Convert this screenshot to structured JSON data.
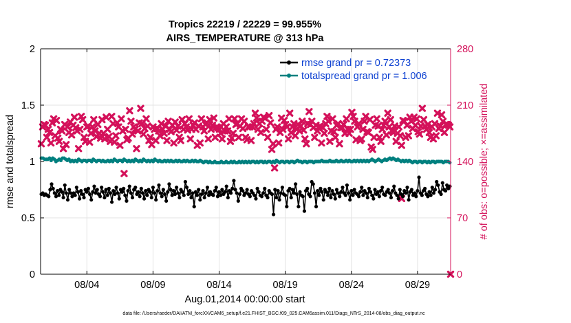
{
  "chart_data": {
    "type": "line",
    "title_line1": "Tropics 22219 / 22229 = 99.955%",
    "title_line2": "AIRS_TEMPERATURE @ 313 hPa",
    "xlabel": "Aug.01,2014 00:00:00 start",
    "ylabel_left": "rmse and totalspread",
    "ylabel_right": "# of obs: o=possible; ×=assimilated",
    "footer": "data file: /Users/raeder/DAI/ATM_forcXX/CAM6_setup/f.e21.FHIST_BGC.f09_025.CAM6assim.011/Diags_NTrS_2014-08/obs_diag_output.nc",
    "xlim": [
      0.5,
      31.5
    ],
    "ylim_left": [
      0,
      2
    ],
    "ylim_right": [
      0,
      280
    ],
    "xticks": [
      4,
      9,
      14,
      19,
      24,
      29
    ],
    "xtick_labels": [
      "08/04",
      "08/09",
      "08/14",
      "08/19",
      "08/24",
      "08/29"
    ],
    "yticks_left": [
      0,
      0.5,
      1,
      1.5,
      2
    ],
    "ytick_labels_left": [
      "0",
      "0.5",
      "1",
      "1.5",
      "2"
    ],
    "yticks_right": [
      0,
      70,
      140,
      210,
      280
    ],
    "ytick_labels_right": [
      "0",
      "70",
      "140",
      "210",
      "280"
    ],
    "grid": true,
    "legend_position": "top-right",
    "colors": {
      "rmse": "#000000",
      "spread": "#00807f",
      "obs": "#d4115a",
      "legend_text": "#0b3fd1",
      "grid": "#e3e3e3"
    },
    "series": [
      {
        "name": "rmse grand pr = 0.72373",
        "key": "rmse",
        "values": [
          0.71,
          0.72,
          0.7,
          0.71,
          0.7,
          0.69,
          0.75,
          0.8,
          0.76,
          0.72,
          0.69,
          0.74,
          0.7,
          0.75,
          0.73,
          0.68,
          0.79,
          0.72,
          0.66,
          0.75,
          0.72,
          0.69,
          0.72,
          0.7,
          0.77,
          0.73,
          0.67,
          0.74,
          0.71,
          0.68,
          0.75,
          0.73,
          0.76,
          0.71,
          0.66,
          0.73,
          0.78,
          0.72,
          0.75,
          0.71,
          0.69,
          0.77,
          0.73,
          0.68,
          0.75,
          0.7,
          0.76,
          0.72,
          0.64,
          0.74,
          0.71,
          0.77,
          0.72,
          0.67,
          0.75,
          0.73,
          0.76,
          0.7,
          0.65,
          0.74,
          0.78,
          0.72,
          0.68,
          0.75,
          0.77,
          0.71,
          0.73,
          0.69,
          0.76,
          0.72,
          0.67,
          0.74,
          0.7,
          0.75,
          0.73,
          0.68,
          0.77,
          0.72,
          0.66,
          0.74,
          0.79,
          0.72,
          0.69,
          0.75,
          0.71,
          0.65,
          0.73,
          0.8,
          0.75,
          0.7,
          0.74,
          0.71,
          0.77,
          0.72,
          0.68,
          0.75,
          0.73,
          0.7,
          0.82,
          0.77,
          0.71,
          0.74,
          0.68,
          0.72,
          0.6,
          0.73,
          0.7,
          0.75,
          0.66,
          0.71,
          0.74,
          0.68,
          0.72,
          0.77,
          0.7,
          0.73,
          0.71,
          0.7,
          0.74,
          0.77,
          0.69,
          0.73,
          0.7,
          0.75,
          0.71,
          0.73,
          0.78,
          0.68,
          0.74,
          0.72,
          0.76,
          0.83,
          0.75,
          0.72,
          0.65,
          0.71,
          0.76,
          0.74,
          0.7,
          0.72,
          0.75,
          0.71,
          0.69,
          0.74,
          0.72,
          0.7,
          0.67,
          0.76,
          0.73,
          0.7,
          0.69,
          0.72,
          0.76,
          0.7,
          0.68,
          0.74,
          0.72,
          0.71,
          0.53,
          0.75,
          0.68,
          0.74,
          0.66,
          0.72,
          0.77,
          0.71,
          0.7,
          0.6,
          0.74,
          0.76,
          0.68,
          0.75,
          0.72,
          0.8,
          0.71,
          0.6,
          0.73,
          0.7,
          0.69,
          0.56,
          0.74,
          0.76,
          0.71,
          0.69,
          0.82,
          0.8,
          0.72,
          0.6,
          0.74,
          0.7,
          0.76,
          0.73,
          0.66,
          0.75,
          0.73,
          0.7,
          0.76,
          0.68,
          0.74,
          0.71,
          0.67,
          0.75,
          0.72,
          0.69,
          0.73,
          0.77,
          0.72,
          0.7,
          0.79,
          0.72,
          0.66,
          0.74,
          0.7,
          0.75,
          0.72,
          0.71,
          0.69,
          0.73,
          0.77,
          0.7,
          0.74,
          0.72,
          0.68,
          0.76,
          0.73,
          0.7,
          0.67,
          0.75,
          0.71,
          0.73,
          0.69,
          0.74,
          0.77,
          0.71,
          0.7,
          0.73,
          0.75,
          0.72,
          0.68,
          0.74,
          0.78,
          0.72,
          0.7,
          0.67,
          0.75,
          0.71,
          0.69,
          0.74,
          0.72,
          0.77,
          0.66,
          0.73,
          0.75,
          0.7,
          0.72,
          0.69,
          0.74,
          0.86,
          0.72,
          0.7,
          0.74,
          0.76,
          0.71,
          0.69,
          0.73,
          0.7,
          0.77,
          0.72,
          0.75,
          0.82,
          0.79,
          0.73,
          0.71,
          0.81,
          0.75,
          0.74,
          0.79,
          0.76,
          0.78
        ],
        "style": "line-dot"
      },
      {
        "name": "totalspread grand pr = 1.006",
        "key": "spread",
        "values": [
          1.03,
          1.03,
          1.02,
          1.02,
          1.02,
          1.03,
          1.01,
          1.03,
          1.02,
          1.0,
          1.01,
          1.02,
          1.01,
          1.03,
          1.03,
          1.02,
          1.01,
          1.02,
          1.0,
          1.01,
          1.0,
          1.01,
          1.0,
          1.02,
          1.01,
          1.0,
          1.01,
          1.01,
          1.0,
          1.01,
          1.01,
          1.0,
          1.02,
          1.01,
          1.0,
          1.01,
          1.01,
          1.0,
          1.01,
          1.0,
          1.0,
          1.01,
          1.0,
          1.01,
          1.0,
          1.02,
          1.01,
          1.0,
          1.01,
          1.01,
          1.0,
          1.02,
          1.01,
          1.0,
          1.01,
          1.0,
          1.01,
          1.0,
          1.02,
          1.01,
          1.0,
          1.01,
          1.0,
          1.02,
          1.01,
          1.0,
          1.01,
          1.0,
          1.01,
          1.0,
          1.02,
          1.01,
          1.0,
          1.01,
          1.0,
          1.0,
          1.01,
          1.0,
          1.01,
          1.0,
          1.01,
          1.0,
          1.0,
          1.01,
          1.0,
          1.01,
          1.0,
          1.0,
          1.01,
          1.0,
          1.01,
          1.0,
          1.0,
          1.01,
          1.0,
          1.01,
          1.0,
          1.0,
          1.01,
          1.0,
          0.99,
          1.0,
          1.0,
          0.99,
          1.0,
          0.99,
          0.99,
          1.0,
          0.99,
          0.99,
          0.99,
          1.0,
          0.99,
          0.99,
          1.0,
          0.99,
          0.99,
          1.0,
          0.99,
          1.0,
          0.99,
          0.99,
          1.0,
          0.99,
          1.0,
          0.99,
          1.0,
          0.99,
          1.0,
          0.99,
          1.0,
          1.0,
          0.99,
          1.0,
          0.99,
          1.0,
          1.0,
          0.99,
          1.0,
          0.99,
          1.0,
          1.0,
          0.99,
          1.0,
          0.99,
          1.01,
          1.0,
          0.99,
          1.0,
          1.0,
          0.99,
          1.0,
          1.0,
          0.99,
          1.0,
          1.0,
          0.99,
          1.0,
          1.01,
          1.0,
          1.0,
          0.99,
          1.0,
          1.0,
          0.99,
          1.0,
          1.0,
          1.0,
          0.99,
          1.0,
          1.0,
          1.0,
          1.0,
          1.01,
          1.0,
          1.0,
          1.0,
          1.0,
          1.01,
          1.0,
          1.0,
          1.0,
          1.01,
          1.0,
          1.0,
          1.01,
          1.0,
          1.0,
          1.01,
          1.0,
          1.01,
          1.0,
          1.0,
          1.01,
          1.0,
          1.01,
          1.0,
          1.01,
          1.0,
          1.01,
          1.0,
          1.01,
          1.0,
          1.01,
          1.02,
          1.01,
          1.0,
          1.01,
          1.02,
          1.01,
          1.0,
          1.01,
          1.02,
          1.01,
          1.02,
          1.03,
          1.02,
          1.03,
          1.02,
          1.01,
          1.02,
          1.01,
          1.0,
          1.01,
          1.0,
          1.01,
          1.0,
          1.01,
          1.0,
          0.99,
          1.0,
          1.0,
          0.99,
          1.0,
          1.0,
          0.99,
          1.0,
          1.0,
          0.99,
          1.0,
          0.99,
          1.0,
          1.0,
          0.99,
          1.0,
          1.0,
          1.0,
          1.0,
          0.99,
          1.0,
          1.0,
          1.0,
          0.99
        ],
        "style": "line-dot"
      }
    ],
    "obs_assimilated": {
      "name": "assimilated",
      "values": [
        162,
        183,
        186,
        185,
        170,
        180,
        176,
        163,
        188,
        193,
        172,
        191,
        169,
        165,
        180,
        178,
        156,
        186,
        161,
        183,
        176,
        189,
        173,
        185,
        195,
        182,
        178,
        156,
        180,
        196,
        192,
        170,
        165,
        183,
        184,
        164,
        175,
        183,
        192,
        178,
        171,
        186,
        175,
        169,
        192,
        175,
        168,
        195,
        180,
        171,
        165,
        196,
        187,
        164,
        172,
        188,
        183,
        160,
        193,
        178,
        125,
        180,
        167,
        169,
        203,
        190,
        174,
        183,
        180,
        156,
        178,
        188,
        206,
        187,
        174,
        181,
        193,
        184,
        166,
        170,
        161,
        183,
        180,
        166,
        181,
        178,
        172,
        187,
        180,
        175,
        184,
        166,
        190,
        180,
        177,
        185,
        163,
        189,
        179,
        184,
        170,
        166,
        192,
        180,
        187,
        183,
        179,
        193,
        168,
        180,
        185,
        188,
        180,
        160,
        184,
        163,
        193,
        183,
        178,
        186,
        188,
        168,
        192,
        180,
        185,
        194,
        170,
        183,
        182,
        180,
        175,
        168,
        187,
        178,
        183,
        178,
        193,
        165,
        169,
        175,
        193,
        186,
        187,
        170,
        184,
        193,
        181,
        190,
        170,
        167,
        183,
        183,
        166,
        183,
        187,
        200,
        194,
        180,
        187,
        176,
        190,
        195,
        194,
        180,
        170,
        197,
        188,
        155,
        162,
        132,
        180,
        183,
        163,
        176,
        194,
        180,
        191,
        186,
        183,
        168,
        200,
        176,
        183,
        187,
        172,
        180,
        186,
        178,
        184,
        190,
        179,
        168,
        162,
        187,
        202,
        186,
        190,
        182,
        170,
        185,
        178,
        183,
        184,
        163,
        182,
        175,
        187,
        196,
        190,
        165,
        178,
        193,
        177,
        170,
        185,
        187,
        162,
        182,
        182,
        186,
        175,
        193,
        180,
        175,
        180,
        201,
        196,
        190,
        167,
        183,
        187,
        166,
        168,
        180,
        190,
        196,
        177,
        176,
        192,
        158,
        155,
        170,
        185,
        193,
        184,
        170,
        165,
        180,
        185,
        190,
        173,
        200,
        183,
        192,
        178,
        176,
        184,
        165,
        175,
        183,
        172,
        160,
        191,
        190,
        170,
        185,
        172,
        195,
        190,
        181,
        195,
        185,
        193,
        177,
        174,
        184,
        206,
        192,
        184,
        180,
        186,
        176,
        170,
        183,
        168,
        187,
        172,
        200,
        181,
        184,
        198,
        190,
        176,
        186,
        186,
        185,
        183
      ],
      "extra": [
        {
          "day": 27.8,
          "value": 94
        },
        {
          "day": 31.5,
          "value": 0
        }
      ]
    }
  }
}
